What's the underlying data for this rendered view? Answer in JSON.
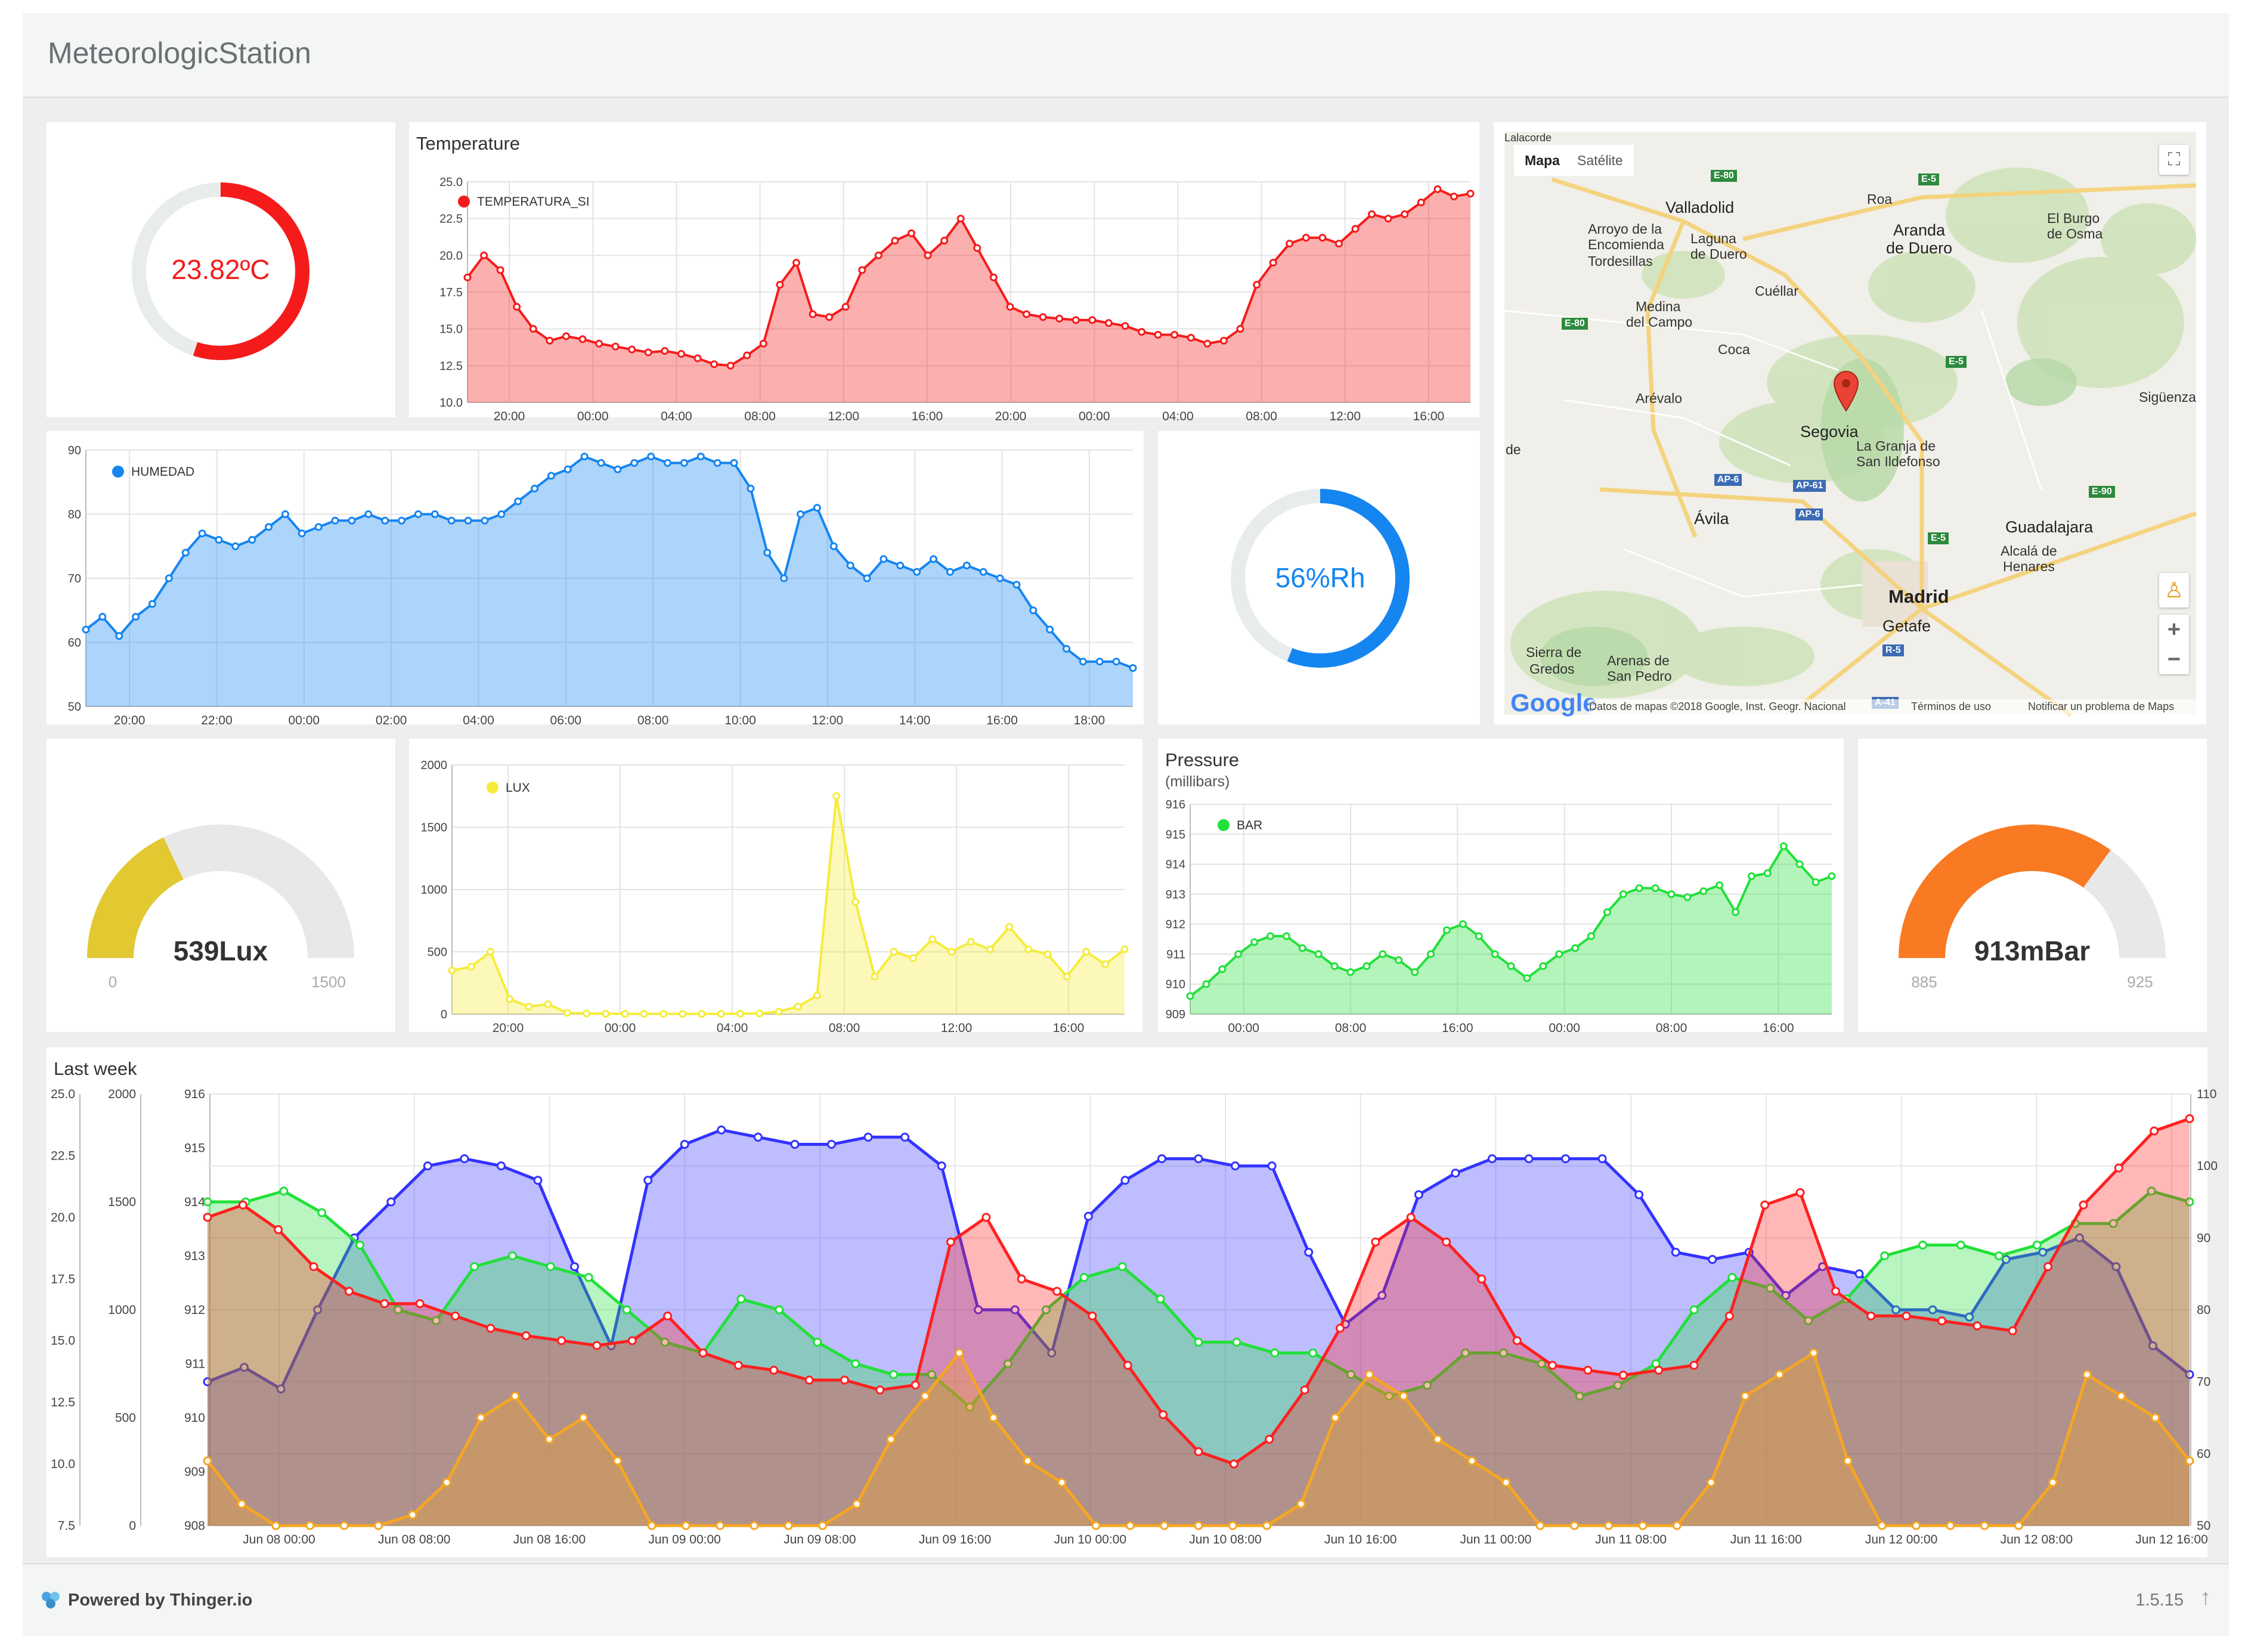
{
  "app_title": "MeteorologicStation",
  "temperature_donut": {
    "value_label": "23.82ºC",
    "fraction": 0.55,
    "color": "#f51b1b"
  },
  "humidity_donut": {
    "value_label": "56%Rh",
    "fraction": 0.56,
    "color": "#1585f0"
  },
  "lux_gauge": {
    "value_label": "539Lux",
    "min_label": "0",
    "max_label": "1500",
    "value": 539,
    "min": 0,
    "max": 1500,
    "color": "#e2c932"
  },
  "pressure_gauge": {
    "value_label": "913mBar",
    "min_label": "885",
    "max_label": "925",
    "value": 913,
    "min": 885,
    "max": 925,
    "color": "#f97a23"
  },
  "panels": {
    "temperature_title": "Temperature",
    "pressure_title": "Pressure",
    "pressure_subtitle": "(millibars)",
    "lastweek_title": "Last week"
  },
  "chart_data": [
    {
      "id": "temperature",
      "type": "area",
      "title": "Temperature",
      "series": [
        {
          "name": "TEMPERATURA_SI",
          "color": "#f51b1b",
          "values": [
            18.5,
            20,
            19,
            16.5,
            15,
            14.2,
            14.5,
            14.3,
            14,
            13.8,
            13.6,
            13.4,
            13.5,
            13.3,
            13,
            12.6,
            12.5,
            13.2,
            14,
            18,
            19.5,
            16,
            15.8,
            16.5,
            19,
            20,
            21,
            21.5,
            20,
            21,
            22.5,
            20.5,
            18.5,
            16.5,
            16,
            15.8,
            15.7,
            15.6,
            15.6,
            15.4,
            15.2,
            14.8,
            14.6,
            14.6,
            14.4,
            14,
            14.2,
            15,
            18,
            19.5,
            20.8,
            21.2,
            21.2,
            20.8,
            21.8,
            22.8,
            22.5,
            22.8,
            23.6,
            24.5,
            24,
            24.2
          ]
        }
      ],
      "x_ticks": [
        "20:00",
        "00:00",
        "04:00",
        "08:00",
        "12:00",
        "16:00",
        "20:00",
        "00:00",
        "04:00",
        "08:00",
        "12:00",
        "16:00"
      ],
      "y_ticks": [
        "10.0",
        "12.5",
        "15.0",
        "17.5",
        "20.0",
        "22.5",
        "25.0"
      ],
      "ylim": [
        10,
        25
      ]
    },
    {
      "id": "humidity",
      "type": "area",
      "series": [
        {
          "name": "HUMEDAD",
          "color": "#1585f0",
          "values": [
            62,
            64,
            61,
            64,
            66,
            70,
            74,
            77,
            76,
            75,
            76,
            78,
            80,
            77,
            78,
            79,
            79,
            80,
            79,
            79,
            80,
            80,
            79,
            79,
            79,
            80,
            82,
            84,
            86,
            87,
            89,
            88,
            87,
            88,
            89,
            88,
            88,
            89,
            88,
            88,
            84,
            74,
            70,
            80,
            81,
            75,
            72,
            70,
            73,
            72,
            71,
            73,
            71,
            72,
            71,
            70,
            69,
            65,
            62,
            59,
            57,
            57,
            57,
            56
          ]
        }
      ],
      "x_ticks": [
        "20:00",
        "22:00",
        "00:00",
        "02:00",
        "04:00",
        "06:00",
        "08:00",
        "10:00",
        "12:00",
        "14:00",
        "16:00",
        "18:00"
      ],
      "y_ticks": [
        "50",
        "60",
        "70",
        "80",
        "90"
      ],
      "ylim": [
        50,
        90
      ]
    },
    {
      "id": "lux",
      "type": "area",
      "series": [
        {
          "name": "LUX",
          "color": "#f5ec3a",
          "values": [
            350,
            380,
            500,
            120,
            60,
            80,
            10,
            5,
            3,
            2,
            2,
            2,
            2,
            2,
            2,
            3,
            5,
            20,
            60,
            150,
            1750,
            900,
            300,
            500,
            450,
            600,
            500,
            580,
            520,
            700,
            520,
            480,
            300,
            500,
            400,
            520
          ]
        }
      ],
      "x_ticks": [
        "20:00",
        "00:00",
        "04:00",
        "08:00",
        "12:00",
        "16:00"
      ],
      "y_ticks": [
        "0",
        "500",
        "1000",
        "1500",
        "2000"
      ],
      "ylim": [
        0,
        2000
      ]
    },
    {
      "id": "pressure",
      "type": "area",
      "title": "Pressure",
      "subtitle": "(millibars)",
      "series": [
        {
          "name": "BAR",
          "color": "#22e03a",
          "values": [
            909.6,
            910,
            910.5,
            911,
            911.4,
            911.6,
            911.6,
            911.2,
            911,
            910.6,
            910.4,
            910.6,
            911,
            910.8,
            910.4,
            911,
            911.8,
            912,
            911.6,
            911,
            910.6,
            910.2,
            910.6,
            911,
            911.2,
            911.6,
            912.4,
            913,
            913.2,
            913.2,
            913,
            912.9,
            913.1,
            913.3,
            912.4,
            913.6,
            913.7,
            914.6,
            914,
            913.4,
            913.6
          ]
        }
      ],
      "x_ticks": [
        "00:00",
        "08:00",
        "16:00",
        "00:00",
        "08:00",
        "16:00"
      ],
      "y_ticks": [
        "909",
        "910",
        "911",
        "912",
        "913",
        "914",
        "915",
        "916"
      ],
      "ylim": [
        909,
        916
      ]
    },
    {
      "id": "last_week",
      "type": "area",
      "title": "Last week",
      "x_ticks": [
        "Jun 08 00:00",
        "Jun 08 08:00",
        "Jun 08 16:00",
        "Jun 09 00:00",
        "Jun 09 08:00",
        "Jun 09 16:00",
        "Jun 10 00:00",
        "Jun 10 08:00",
        "Jun 10 16:00",
        "Jun 11 00:00",
        "Jun 11 08:00",
        "Jun 11 16:00",
        "Jun 12 00:00",
        "Jun 12 08:00",
        "Jun 12 16:00"
      ],
      "y_axes": [
        {
          "ticks": [
            "7.5",
            "10.0",
            "12.5",
            "15.0",
            "17.5",
            "20.0",
            "22.5",
            "25.0"
          ],
          "lim": [
            7.5,
            25
          ]
        },
        {
          "ticks": [
            "0",
            "500",
            "1000",
            "1500",
            "2000"
          ],
          "lim": [
            0,
            2000
          ]
        },
        {
          "ticks": [
            "908",
            "909",
            "910",
            "911",
            "912",
            "913",
            "914",
            "915",
            "916"
          ],
          "lim": [
            908,
            916
          ]
        },
        {
          "ticks": [
            "50",
            "60",
            "70",
            "80",
            "90",
            "100",
            "110"
          ],
          "lim": [
            50,
            110
          ]
        }
      ],
      "series": [
        {
          "color": "#3333ff",
          "axis": 3,
          "values": [
            70,
            72,
            69,
            80,
            90,
            95,
            100,
            101,
            100,
            98,
            86,
            75,
            98,
            103,
            105,
            104,
            103,
            103,
            104,
            104,
            100,
            80,
            80,
            74,
            93,
            98,
            101,
            101,
            100,
            100,
            88,
            78,
            82,
            96,
            99,
            101,
            101,
            101,
            101,
            96,
            88,
            87,
            88,
            82,
            86,
            85,
            80,
            80,
            79,
            87,
            88,
            90,
            86,
            75,
            71
          ]
        },
        {
          "color": "#22e03a",
          "axis": 2,
          "values": [
            914,
            914,
            914.2,
            913.8,
            913.2,
            912,
            911.8,
            912.8,
            913,
            912.8,
            912.6,
            912,
            911.4,
            911.2,
            912.2,
            912,
            911.4,
            911,
            910.8,
            910.8,
            910.2,
            911,
            912,
            912.6,
            912.8,
            912.2,
            911.4,
            911.4,
            911.2,
            911.2,
            910.8,
            910.4,
            910.6,
            911.2,
            911.2,
            911,
            910.4,
            910.6,
            911,
            912,
            912.6,
            912.4,
            911.8,
            912.2,
            913,
            913.2,
            913.2,
            913,
            913.2,
            913.6,
            913.6,
            914.2,
            914
          ]
        },
        {
          "color": "#ff2020",
          "axis": 0,
          "values": [
            20,
            20.5,
            19.5,
            18,
            17,
            16.5,
            16.5,
            16,
            15.5,
            15.2,
            15,
            14.8,
            15,
            16,
            14.5,
            14,
            13.8,
            13.4,
            13.4,
            13,
            13.2,
            19,
            20,
            17.5,
            17,
            16,
            14,
            12,
            10.5,
            10,
            11,
            13,
            15.5,
            19,
            20,
            19,
            17.5,
            15,
            14,
            13.8,
            13.6,
            13.8,
            14,
            16,
            20.5,
            21,
            17,
            16,
            16,
            15.8,
            15.6,
            15.4,
            18,
            20.5,
            22,
            23.5,
            24
          ]
        },
        {
          "color": "#f5a623",
          "axis": 1,
          "values": [
            300,
            100,
            0,
            0,
            0,
            0,
            50,
            200,
            500,
            600,
            400,
            500,
            300,
            0,
            0,
            0,
            0,
            0,
            0,
            100,
            400,
            600,
            800,
            500,
            300,
            200,
            0,
            0,
            0,
            0,
            0,
            0,
            100,
            500,
            700,
            600,
            400,
            300,
            200,
            0,
            0,
            0,
            0,
            0,
            200,
            600,
            700,
            800,
            300,
            0,
            0,
            0,
            0,
            0,
            200,
            700,
            600,
            500,
            300
          ]
        }
      ]
    }
  ],
  "map": {
    "tab_map": "Mapa",
    "tab_satellite": "Satélite",
    "zoom_in": "+",
    "zoom_out": "−",
    "google": "Google",
    "attribution": "Datos de mapas ©2018 Google, Inst. Geogr. Nacional",
    "terms": "Términos de uso",
    "report": "Notificar un problema de Maps",
    "places": [
      "Valladolid",
      "Arroyo de la",
      "Encomienda",
      "Tordesillas",
      "Laguna",
      "de Duero",
      "Roa",
      "Aranda",
      "de Duero",
      "El Burgo",
      "de Osma",
      "Cuéllar",
      "Medina",
      "del Campo",
      "Coca",
      "Arévalo",
      "Segovia",
      "La Granja de",
      "San Ildefonso",
      "Ávila",
      "Guadalajara",
      "Alcalá de",
      "Henares",
      "Madrid",
      "Getafe",
      "Sierra de",
      "Gredos",
      "Arenas de",
      "San Pedro",
      "Sigüenza",
      "Lalacorde",
      "de"
    ],
    "roads": [
      "E-80",
      "E-5",
      "E-80",
      "E-5",
      "AP-6",
      "AP-61",
      "AP-6",
      "E-90",
      "E-5",
      "R-5",
      "A-41"
    ]
  },
  "footer": {
    "powered": "Powered by Thinger.io",
    "version": "1.5.15"
  }
}
